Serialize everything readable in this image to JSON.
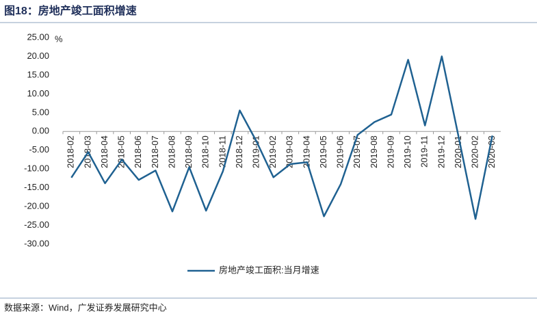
{
  "title": "图18：房地产竣工面积增速",
  "source": "数据来源：Wind，广发证券发展研究中心",
  "chart_data": {
    "type": "line",
    "y_label": "%",
    "categories": [
      "2018-02",
      "2018-03",
      "2018-04",
      "2018-05",
      "2018-06",
      "2018-07",
      "2018-08",
      "2018-09",
      "2018-10",
      "2018-11",
      "2018-12",
      "2019-01",
      "2019-02",
      "2019-03",
      "2019-04",
      "2019-05",
      "2019-06",
      "2019-07",
      "2019-08",
      "2019-09",
      "2019-10",
      "2019-11",
      "2019-12",
      "2020-01",
      "2020-02",
      "2020-03"
    ],
    "series": [
      {
        "name": "房地产竣工面积:当月增速",
        "color": "#1f6191",
        "values": [
          -12.3,
          -5.5,
          -13.8,
          -7.5,
          -12.9,
          -10.4,
          -21.3,
          -9.5,
          -21.1,
          -10.6,
          5.6,
          -2.7,
          -12.2,
          -8.7,
          -8.2,
          -22.6,
          -14.0,
          -0.9,
          2.5,
          4.5,
          19.1,
          1.6,
          20.0,
          -1.5,
          -23.3,
          -1.1
        ]
      }
    ],
    "ylim": [
      -30,
      25
    ],
    "yticks": [
      {
        "value": -30,
        "label": "-30.00"
      },
      {
        "value": -25,
        "label": "-25.00"
      },
      {
        "value": -20,
        "label": "-20.00"
      },
      {
        "value": -15,
        "label": "-15.00"
      },
      {
        "value": -10,
        "label": "-10.00"
      },
      {
        "value": -5,
        "label": "-5.00"
      },
      {
        "value": 0,
        "label": "0.00"
      },
      {
        "value": 5,
        "label": "5.00"
      },
      {
        "value": 10,
        "label": "10.00"
      },
      {
        "value": 15,
        "label": "15.00"
      },
      {
        "value": 20,
        "label": "20.00"
      },
      {
        "value": 25,
        "label": "25.00"
      }
    ],
    "grid": false,
    "legend": "bottom"
  }
}
